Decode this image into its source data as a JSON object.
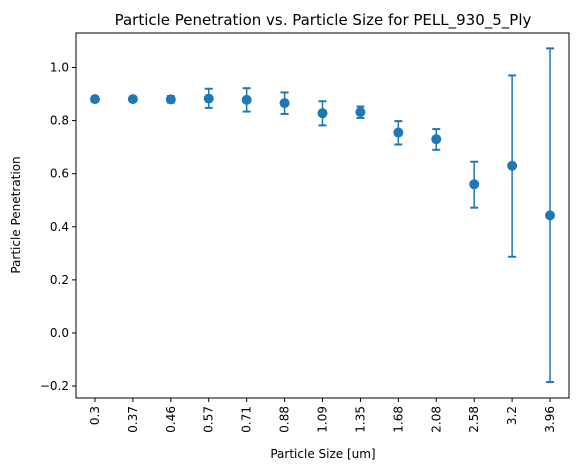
{
  "chart_data": {
    "type": "scatter",
    "title": "Particle Penetration vs. Particle Size for PELL_930_5_Ply",
    "xlabel": "Particle Size [um]",
    "ylabel": "Particle Penetration",
    "categories": [
      "0.3",
      "0.37",
      "0.46",
      "0.57",
      "0.71",
      "0.88",
      "1.09",
      "1.35",
      "1.68",
      "2.08",
      "2.58",
      "3.2",
      "3.96"
    ],
    "series": [
      {
        "values": [
          0.881,
          0.881,
          0.88,
          0.883,
          0.878,
          0.866,
          0.828,
          0.832,
          0.755,
          0.73,
          0.56,
          0.63,
          0.443
        ],
        "error_upper": [
          0.89,
          0.89,
          0.892,
          0.92,
          0.922,
          0.906,
          0.873,
          0.853,
          0.798,
          0.768,
          0.645,
          0.97,
          1.072
        ],
        "error_lower": [
          0.872,
          0.873,
          0.868,
          0.848,
          0.834,
          0.825,
          0.782,
          0.81,
          0.71,
          0.69,
          0.472,
          0.287,
          -0.185
        ]
      }
    ],
    "ylim": [
      -0.245,
      1.13
    ],
    "yticks": [
      -0.2,
      0.0,
      0.2,
      0.4,
      0.6,
      0.8,
      1.0
    ],
    "ytick_labels": [
      "−0.2",
      "0.0",
      "0.2",
      "0.4",
      "0.6",
      "0.8",
      "1.0"
    ],
    "color": "#1f77b4",
    "grid": false,
    "legend": "none"
  }
}
